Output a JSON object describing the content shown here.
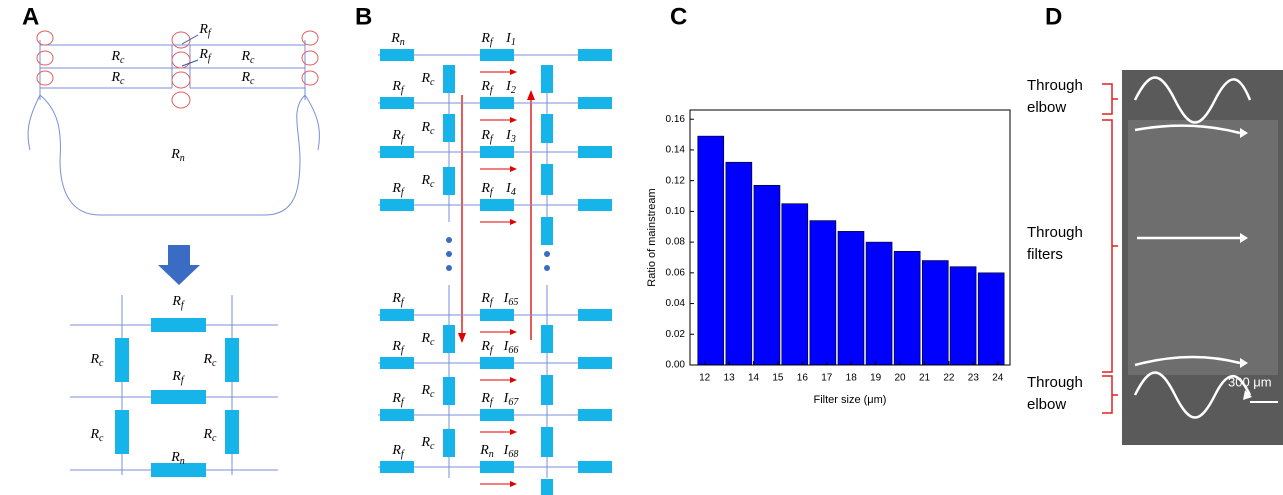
{
  "panel_labels": [
    "A",
    "B",
    "C",
    "D"
  ],
  "diagram_a": {
    "top_labels": [
      {
        "main": "R",
        "sub": "f"
      },
      {
        "main": "R",
        "sub": "f"
      },
      {
        "main": "R",
        "sub": "c"
      },
      {
        "main": "R",
        "sub": "c"
      },
      {
        "main": "R",
        "sub": "c"
      },
      {
        "main": "R",
        "sub": "c"
      },
      {
        "main": "R",
        "sub": "n"
      }
    ],
    "bottom_labels": [
      {
        "main": "R",
        "sub": "f"
      },
      {
        "main": "R",
        "sub": "c"
      },
      {
        "main": "R",
        "sub": "c"
      },
      {
        "main": "R",
        "sub": "f"
      },
      {
        "main": "R",
        "sub": "c"
      },
      {
        "main": "R",
        "sub": "c"
      },
      {
        "main": "R",
        "sub": "n"
      }
    ]
  },
  "diagram_b": {
    "rows": [
      {
        "left": {
          "main": "R",
          "sub": "n"
        },
        "mid": {
          "main": "R",
          "sub": "f"
        },
        "current": {
          "main": "I",
          "sub": "1"
        }
      },
      {
        "left": {
          "main": "R",
          "sub": "f"
        },
        "rc": {
          "main": "R",
          "sub": "c"
        },
        "mid": {
          "main": "R",
          "sub": "f"
        },
        "current": {
          "main": "I",
          "sub": "2"
        }
      },
      {
        "left": {
          "main": "R",
          "sub": "f"
        },
        "rc": {
          "main": "R",
          "sub": "c"
        },
        "mid": {
          "main": "R",
          "sub": "f"
        },
        "current": {
          "main": "I",
          "sub": "3"
        }
      },
      {
        "left": {
          "main": "R",
          "sub": "f"
        },
        "rc": {
          "main": "R",
          "sub": "c"
        },
        "mid": {
          "main": "R",
          "sub": "f"
        },
        "current": {
          "main": "I",
          "sub": "4"
        }
      },
      {
        "left": {
          "main": "R",
          "sub": "f"
        },
        "mid": {
          "main": "R",
          "sub": "f"
        },
        "current": {
          "main": "I",
          "sub": "65"
        }
      },
      {
        "left": {
          "main": "R",
          "sub": "f"
        },
        "rc": {
          "main": "R",
          "sub": "c"
        },
        "mid": {
          "main": "R",
          "sub": "f"
        },
        "current": {
          "main": "I",
          "sub": "66"
        }
      },
      {
        "left": {
          "main": "R",
          "sub": "f"
        },
        "rc": {
          "main": "R",
          "sub": "c"
        },
        "mid": {
          "main": "R",
          "sub": "f"
        },
        "current": {
          "main": "I",
          "sub": "67"
        }
      },
      {
        "left": {
          "main": "R",
          "sub": "f"
        },
        "rc": {
          "main": "R",
          "sub": "c"
        },
        "mid": {
          "main": "R",
          "sub": "n"
        },
        "current": {
          "main": "I",
          "sub": "68"
        }
      }
    ]
  },
  "chart_data": {
    "type": "bar",
    "x_label": "Filter size (μm)",
    "y_label": "Ratio of mainstream",
    "x": [
      12.25,
      13.4,
      14.55,
      15.69,
      16.84,
      17.99,
      19.14,
      20.29,
      21.44,
      22.58,
      23.73
    ],
    "values": [
      0.149,
      0.132,
      0.117,
      0.105,
      0.094,
      0.087,
      0.08,
      0.074,
      0.068,
      0.064,
      0.06
    ],
    "color": "#0000ff",
    "xlim": [
      11.4,
      24.5
    ],
    "xticks": [
      12,
      13,
      14,
      15,
      16,
      17,
      18,
      19,
      20,
      21,
      22,
      23,
      24
    ],
    "ylim": [
      0,
      0.166
    ],
    "yticks": [
      {
        "value": 0,
        "label": "0.00"
      },
      0.02,
      0.04,
      0.06,
      0.08,
      {
        "value": 0.1,
        "label": "0.10"
      },
      0.12,
      0.14,
      0.16
    ]
  },
  "panel_d": {
    "annotations": [
      {
        "lines": [
          "Through",
          "elbow"
        ]
      },
      {
        "lines": [
          "Through",
          "filters"
        ]
      },
      {
        "lines": [
          "Through",
          "elbow"
        ]
      }
    ],
    "scale_bar": "300 μm"
  }
}
